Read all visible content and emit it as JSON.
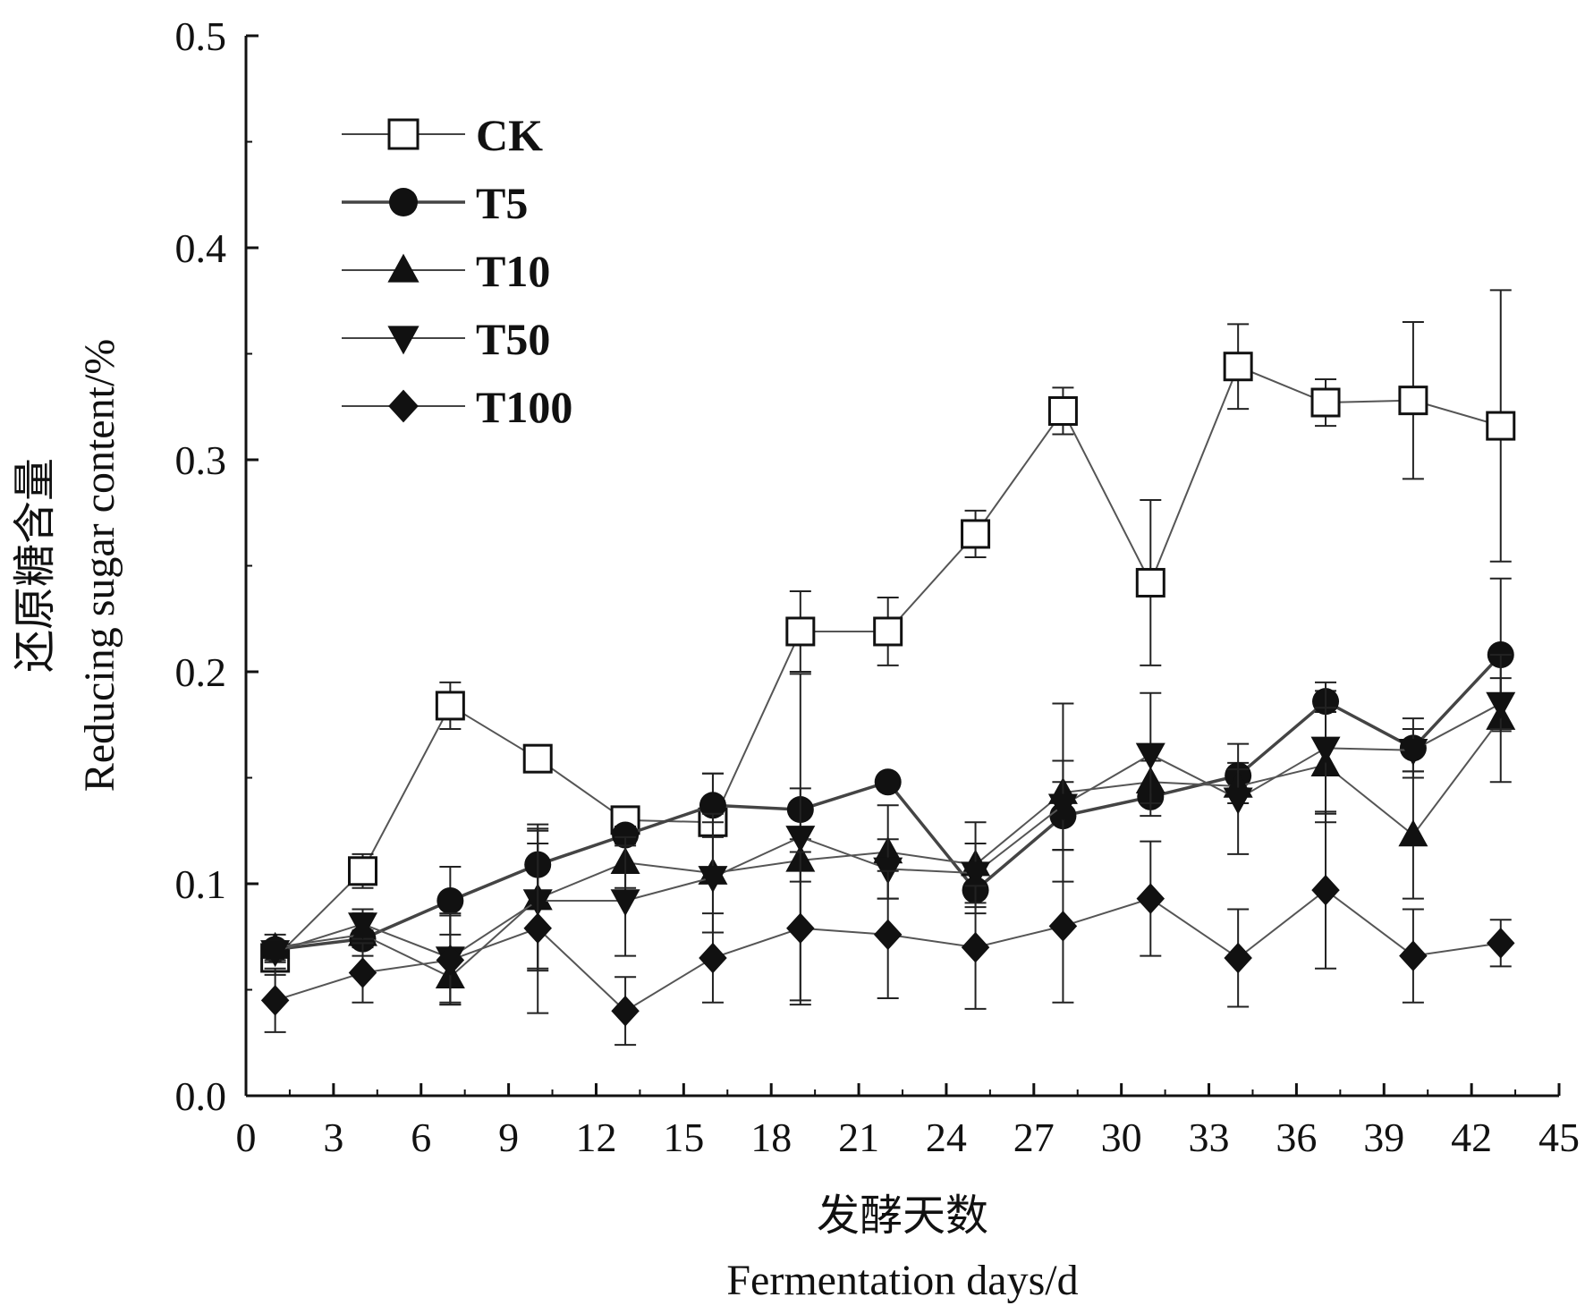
{
  "chart_data": {
    "type": "line",
    "title": "",
    "xlabel_cn": "发酵天数",
    "xlabel_en": "Fermentation days/d",
    "ylabel_cn": "还原糖含量",
    "ylabel_en": "Reducing sugar content/%",
    "xlim": [
      0,
      45
    ],
    "ylim": [
      0,
      0.5
    ],
    "xticks": [
      0,
      3,
      6,
      9,
      12,
      15,
      18,
      21,
      24,
      27,
      30,
      33,
      36,
      39,
      42,
      45
    ],
    "yticks": [
      0.0,
      0.1,
      0.2,
      0.3,
      0.4,
      0.5
    ],
    "ytick_labels": [
      "0.0",
      "0.1",
      "0.2",
      "0.3",
      "0.4",
      "0.5"
    ],
    "grid": false,
    "legend_position": "top-left",
    "x": [
      1,
      4,
      7,
      10,
      13,
      16,
      19,
      22,
      25,
      28,
      31,
      34,
      37,
      40,
      43
    ],
    "series": [
      {
        "name": "CK",
        "marker": "square-open",
        "color": "#333333",
        "values": [
          0.065,
          0.106,
          0.184,
          0.159,
          0.13,
          0.129,
          0.219,
          0.219,
          0.265,
          0.323,
          0.242,
          0.344,
          0.327,
          0.328,
          0.316
        ],
        "errors": [
          0.008,
          0.008,
          0.011,
          0.004,
          0.005,
          0.023,
          0.019,
          0.016,
          0.011,
          0.011,
          0.039,
          0.02,
          0.011,
          0.037,
          0.064
        ]
      },
      {
        "name": "T5",
        "marker": "circle",
        "color": "#333333",
        "values": [
          0.069,
          0.074,
          0.092,
          0.109,
          0.123,
          0.137,
          0.135,
          0.148,
          0.097,
          0.132,
          0.141,
          0.151,
          0.186,
          0.164,
          0.208
        ],
        "errors": [
          0.003,
          0.004,
          0.016,
          0.019,
          0.004,
          0.015,
          0.01,
          0.003,
          0.011,
          0.016,
          0.003,
          0.006,
          0.005,
          0.014,
          0.036
        ]
      },
      {
        "name": "T10",
        "marker": "triangle-up",
        "color": "#333333",
        "values": [
          0.07,
          0.076,
          0.056,
          0.093,
          0.11,
          0.105,
          0.111,
          0.115,
          0.109,
          0.143,
          0.148,
          0.146,
          0.156,
          0.123,
          0.178
        ],
        "errors": [
          0.006,
          0.01,
          0.013,
          0.033,
          0.012,
          0.028,
          0.01,
          0.022,
          0.02,
          0.042,
          0.01,
          0.008,
          0.027,
          0.03,
          0.03
        ]
      },
      {
        "name": "T50",
        "marker": "triangle-down",
        "color": "#333333",
        "values": [
          0.068,
          0.081,
          0.065,
          0.092,
          0.092,
          0.103,
          0.122,
          0.107,
          0.105,
          0.137,
          0.161,
          0.14,
          0.164,
          0.163,
          0.185
        ],
        "errors": [
          0.005,
          0.007,
          0.021,
          0.033,
          0.026,
          0.026,
          0.077,
          0.014,
          0.014,
          0.021,
          0.029,
          0.026,
          0.031,
          0.01,
          0.012
        ]
      },
      {
        "name": "T100",
        "marker": "diamond",
        "color": "#111111",
        "values": [
          0.045,
          0.058,
          0.064,
          0.079,
          0.04,
          0.065,
          0.079,
          0.076,
          0.07,
          0.08,
          0.093,
          0.065,
          0.097,
          0.066,
          0.072
        ],
        "errors": [
          0.015,
          0.014,
          0.021,
          0.04,
          0.016,
          0.021,
          0.036,
          0.03,
          0.029,
          0.036,
          0.027,
          0.023,
          0.037,
          0.022,
          0.011
        ]
      }
    ]
  }
}
